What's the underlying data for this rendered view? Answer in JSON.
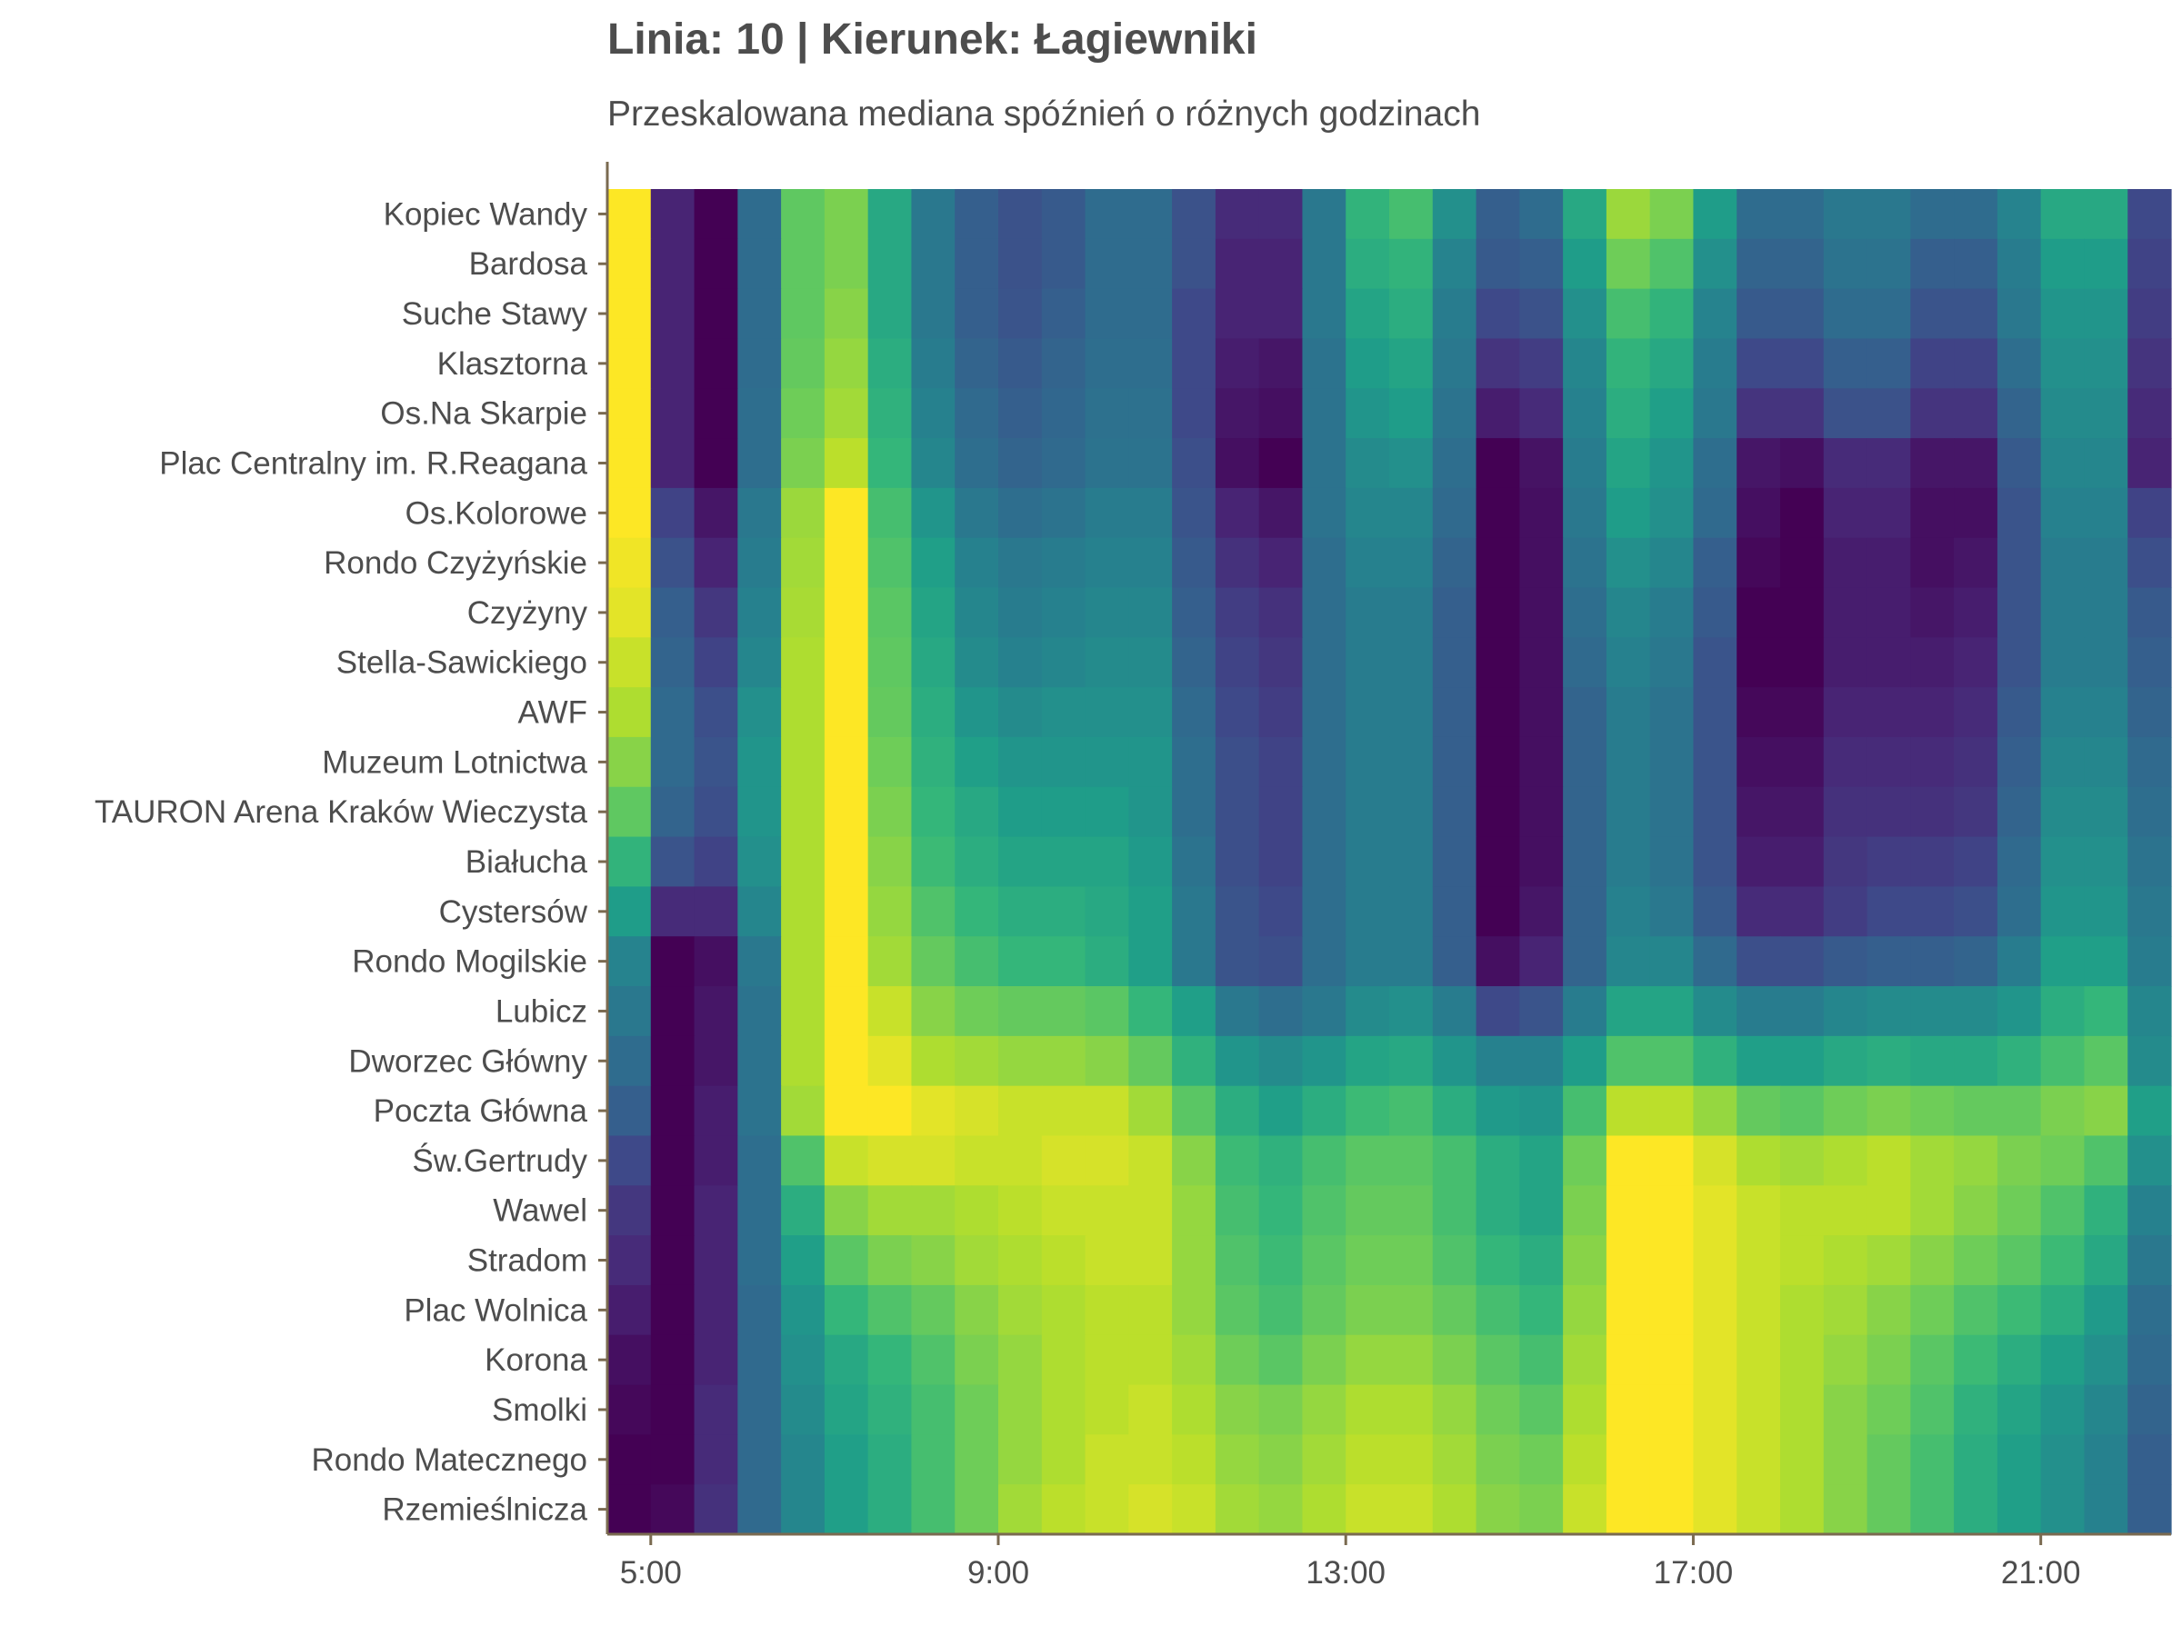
{
  "chart_data": {
    "type": "heatmap",
    "title": "Linia: 10 | Kierunek: Łagiewniki",
    "subtitle": "Przeskalowana mediana spóźnień o różnych godzinach",
    "xlabel": "",
    "ylabel": "",
    "x_tick_labels": [
      "5:00",
      "9:00",
      "13:00",
      "17:00",
      "21:00"
    ],
    "x_tick_hours": [
      5,
      9,
      13,
      17,
      21
    ],
    "x_hours": [
      4.75,
      5.25,
      5.75,
      6.25,
      6.75,
      7.25,
      7.75,
      8.25,
      8.75,
      9.25,
      9.75,
      10.25,
      10.75,
      11.25,
      11.75,
      12.25,
      12.75,
      13.25,
      13.75,
      14.25,
      14.75,
      15.25,
      15.75,
      16.25,
      16.75,
      17.25,
      17.75,
      18.25,
      18.75,
      19.25,
      19.75,
      20.25,
      20.75,
      21.25,
      21.75,
      22.25
    ],
    "x_range": [
      4.5,
      22.5
    ],
    "stops": [
      "Kopiec Wandy",
      "Bardosa",
      "Suche Stawy",
      "Klasztorna",
      "Os.Na Skarpie",
      "Plac Centralny im. R.Reagana",
      "Os.Kolorowe",
      "Rondo Czyżyńskie",
      "Czyżyny",
      "Stella-Sawickiego",
      "AWF",
      "Muzeum Lotnictwa",
      "TAURON Arena Kraków Wieczysta",
      "Białucha",
      "Cystersów",
      "Rondo Mogilskie",
      "Lubicz",
      "Dworzec Główny",
      "Poczta Główna",
      "Św.Gertrudy",
      "Wawel",
      "Stradom",
      "Plac Wolnica",
      "Korona",
      "Smolki",
      "Rondo Matecznego",
      "Rzemieślnicza"
    ],
    "colorscale": "viridis",
    "value_range": [
      0,
      1
    ],
    "values": [
      [
        1.0,
        0.1,
        0.0,
        0.35,
        0.75,
        0.8,
        0.6,
        0.4,
        0.3,
        0.25,
        0.28,
        0.35,
        0.35,
        0.25,
        0.12,
        0.12,
        0.4,
        0.65,
        0.7,
        0.5,
        0.3,
        0.35,
        0.6,
        0.85,
        0.8,
        0.55,
        0.35,
        0.35,
        0.4,
        0.4,
        0.35,
        0.35,
        0.45,
        0.6,
        0.6,
        0.22
      ],
      [
        1.0,
        0.1,
        0.0,
        0.35,
        0.75,
        0.8,
        0.6,
        0.4,
        0.3,
        0.25,
        0.28,
        0.35,
        0.35,
        0.25,
        0.1,
        0.1,
        0.4,
        0.62,
        0.65,
        0.45,
        0.28,
        0.3,
        0.55,
        0.78,
        0.72,
        0.5,
        0.32,
        0.32,
        0.38,
        0.38,
        0.3,
        0.3,
        0.42,
        0.55,
        0.55,
        0.2
      ],
      [
        1.0,
        0.1,
        0.0,
        0.35,
        0.75,
        0.82,
        0.6,
        0.4,
        0.3,
        0.26,
        0.3,
        0.35,
        0.35,
        0.22,
        0.1,
        0.1,
        0.4,
        0.58,
        0.62,
        0.42,
        0.22,
        0.25,
        0.5,
        0.7,
        0.65,
        0.45,
        0.28,
        0.28,
        0.35,
        0.35,
        0.26,
        0.26,
        0.4,
        0.52,
        0.52,
        0.18
      ],
      [
        1.0,
        0.1,
        0.0,
        0.35,
        0.76,
        0.84,
        0.62,
        0.42,
        0.32,
        0.28,
        0.32,
        0.36,
        0.36,
        0.22,
        0.08,
        0.06,
        0.38,
        0.55,
        0.58,
        0.4,
        0.15,
        0.18,
        0.46,
        0.65,
        0.6,
        0.42,
        0.22,
        0.22,
        0.3,
        0.3,
        0.2,
        0.2,
        0.36,
        0.5,
        0.5,
        0.15
      ],
      [
        1.0,
        0.1,
        0.0,
        0.36,
        0.78,
        0.86,
        0.64,
        0.44,
        0.34,
        0.3,
        0.33,
        0.37,
        0.37,
        0.22,
        0.06,
        0.04,
        0.38,
        0.52,
        0.55,
        0.38,
        0.08,
        0.12,
        0.44,
        0.62,
        0.56,
        0.4,
        0.15,
        0.15,
        0.25,
        0.25,
        0.15,
        0.15,
        0.32,
        0.48,
        0.48,
        0.12
      ],
      [
        1.0,
        0.1,
        0.0,
        0.36,
        0.8,
        0.9,
        0.66,
        0.46,
        0.36,
        0.32,
        0.34,
        0.38,
        0.38,
        0.24,
        0.04,
        0.0,
        0.38,
        0.48,
        0.5,
        0.36,
        0.0,
        0.05,
        0.42,
        0.58,
        0.52,
        0.36,
        0.06,
        0.04,
        0.12,
        0.12,
        0.06,
        0.06,
        0.28,
        0.46,
        0.46,
        0.1
      ],
      [
        1.0,
        0.2,
        0.06,
        0.4,
        0.85,
        1.0,
        0.7,
        0.52,
        0.4,
        0.36,
        0.38,
        0.42,
        0.42,
        0.26,
        0.1,
        0.06,
        0.38,
        0.46,
        0.46,
        0.34,
        0.0,
        0.04,
        0.4,
        0.55,
        0.5,
        0.34,
        0.04,
        0.0,
        0.1,
        0.1,
        0.04,
        0.04,
        0.26,
        0.44,
        0.44,
        0.2
      ],
      [
        0.98,
        0.25,
        0.1,
        0.42,
        0.86,
        1.0,
        0.72,
        0.56,
        0.44,
        0.4,
        0.42,
        0.44,
        0.44,
        0.28,
        0.14,
        0.1,
        0.36,
        0.44,
        0.44,
        0.32,
        0.0,
        0.04,
        0.38,
        0.5,
        0.46,
        0.3,
        0.02,
        0.0,
        0.08,
        0.08,
        0.04,
        0.06,
        0.26,
        0.42,
        0.42,
        0.24
      ],
      [
        0.96,
        0.3,
        0.16,
        0.44,
        0.87,
        1.0,
        0.74,
        0.58,
        0.46,
        0.42,
        0.44,
        0.46,
        0.46,
        0.3,
        0.18,
        0.14,
        0.36,
        0.42,
        0.42,
        0.3,
        0.0,
        0.04,
        0.36,
        0.46,
        0.42,
        0.28,
        0.0,
        0.0,
        0.08,
        0.08,
        0.06,
        0.08,
        0.26,
        0.42,
        0.42,
        0.28
      ],
      [
        0.92,
        0.32,
        0.2,
        0.46,
        0.88,
        1.0,
        0.75,
        0.6,
        0.48,
        0.44,
        0.46,
        0.48,
        0.48,
        0.32,
        0.2,
        0.16,
        0.36,
        0.42,
        0.42,
        0.3,
        0.0,
        0.04,
        0.34,
        0.44,
        0.4,
        0.26,
        0.0,
        0.0,
        0.08,
        0.08,
        0.08,
        0.1,
        0.26,
        0.42,
        0.42,
        0.3
      ],
      [
        0.88,
        0.34,
        0.24,
        0.5,
        0.88,
        1.0,
        0.76,
        0.62,
        0.52,
        0.48,
        0.5,
        0.5,
        0.5,
        0.34,
        0.22,
        0.18,
        0.36,
        0.42,
        0.42,
        0.3,
        0.0,
        0.04,
        0.32,
        0.42,
        0.38,
        0.26,
        0.02,
        0.02,
        0.1,
        0.1,
        0.1,
        0.12,
        0.28,
        0.44,
        0.44,
        0.32
      ],
      [
        0.82,
        0.34,
        0.26,
        0.52,
        0.88,
        1.0,
        0.78,
        0.64,
        0.56,
        0.52,
        0.52,
        0.52,
        0.52,
        0.36,
        0.24,
        0.2,
        0.36,
        0.42,
        0.42,
        0.3,
        0.0,
        0.04,
        0.32,
        0.42,
        0.38,
        0.26,
        0.04,
        0.04,
        0.12,
        0.12,
        0.12,
        0.14,
        0.3,
        0.46,
        0.46,
        0.34
      ],
      [
        0.75,
        0.32,
        0.24,
        0.52,
        0.88,
        1.0,
        0.8,
        0.66,
        0.6,
        0.55,
        0.55,
        0.55,
        0.52,
        0.36,
        0.24,
        0.2,
        0.36,
        0.42,
        0.42,
        0.3,
        0.0,
        0.04,
        0.32,
        0.42,
        0.38,
        0.26,
        0.06,
        0.06,
        0.14,
        0.14,
        0.14,
        0.16,
        0.32,
        0.48,
        0.48,
        0.36
      ],
      [
        0.65,
        0.26,
        0.2,
        0.5,
        0.88,
        1.0,
        0.82,
        0.68,
        0.62,
        0.58,
        0.58,
        0.58,
        0.54,
        0.38,
        0.24,
        0.2,
        0.36,
        0.42,
        0.42,
        0.3,
        0.0,
        0.04,
        0.32,
        0.42,
        0.38,
        0.26,
        0.08,
        0.08,
        0.16,
        0.18,
        0.18,
        0.2,
        0.34,
        0.5,
        0.5,
        0.38
      ],
      [
        0.55,
        0.12,
        0.12,
        0.46,
        0.88,
        1.0,
        0.84,
        0.72,
        0.66,
        0.62,
        0.62,
        0.6,
        0.56,
        0.4,
        0.26,
        0.22,
        0.36,
        0.42,
        0.42,
        0.3,
        0.0,
        0.06,
        0.32,
        0.44,
        0.4,
        0.28,
        0.12,
        0.12,
        0.18,
        0.22,
        0.22,
        0.24,
        0.36,
        0.52,
        0.52,
        0.4
      ],
      [
        0.45,
        0.0,
        0.04,
        0.4,
        0.88,
        1.0,
        0.86,
        0.76,
        0.7,
        0.66,
        0.66,
        0.62,
        0.56,
        0.4,
        0.26,
        0.24,
        0.36,
        0.42,
        0.42,
        0.3,
        0.04,
        0.1,
        0.32,
        0.46,
        0.46,
        0.34,
        0.24,
        0.24,
        0.28,
        0.3,
        0.3,
        0.32,
        0.42,
        0.56,
        0.56,
        0.42
      ],
      [
        0.4,
        0.0,
        0.06,
        0.38,
        0.88,
        1.0,
        0.92,
        0.82,
        0.78,
        0.76,
        0.76,
        0.74,
        0.66,
        0.56,
        0.4,
        0.36,
        0.4,
        0.48,
        0.5,
        0.42,
        0.22,
        0.26,
        0.42,
        0.58,
        0.58,
        0.48,
        0.42,
        0.42,
        0.46,
        0.48,
        0.48,
        0.48,
        0.52,
        0.62,
        0.66,
        0.46
      ],
      [
        0.35,
        0.0,
        0.06,
        0.38,
        0.88,
        1.0,
        0.96,
        0.88,
        0.86,
        0.84,
        0.84,
        0.82,
        0.76,
        0.64,
        0.52,
        0.48,
        0.52,
        0.58,
        0.6,
        0.52,
        0.44,
        0.44,
        0.55,
        0.72,
        0.72,
        0.64,
        0.56,
        0.56,
        0.6,
        0.62,
        0.6,
        0.6,
        0.64,
        0.7,
        0.74,
        0.48
      ],
      [
        0.3,
        0.0,
        0.08,
        0.38,
        0.86,
        1.0,
        1.0,
        0.96,
        0.94,
        0.92,
        0.92,
        0.92,
        0.86,
        0.74,
        0.62,
        0.56,
        0.62,
        0.68,
        0.7,
        0.62,
        0.54,
        0.52,
        0.7,
        0.9,
        0.9,
        0.84,
        0.76,
        0.74,
        0.78,
        0.8,
        0.78,
        0.76,
        0.76,
        0.8,
        0.82,
        0.56
      ],
      [
        0.22,
        0.0,
        0.08,
        0.36,
        0.72,
        0.92,
        0.94,
        0.94,
        0.92,
        0.92,
        0.94,
        0.94,
        0.92,
        0.82,
        0.68,
        0.64,
        0.7,
        0.74,
        0.74,
        0.7,
        0.62,
        0.58,
        0.78,
        1.0,
        1.0,
        0.94,
        0.88,
        0.86,
        0.88,
        0.9,
        0.86,
        0.84,
        0.8,
        0.78,
        0.72,
        0.5
      ],
      [
        0.16,
        0.0,
        0.1,
        0.36,
        0.62,
        0.82,
        0.86,
        0.86,
        0.88,
        0.9,
        0.92,
        0.92,
        0.92,
        0.84,
        0.7,
        0.66,
        0.72,
        0.76,
        0.76,
        0.7,
        0.62,
        0.58,
        0.8,
        1.0,
        1.0,
        0.96,
        0.92,
        0.9,
        0.9,
        0.9,
        0.86,
        0.82,
        0.78,
        0.72,
        0.64,
        0.44
      ],
      [
        0.12,
        0.0,
        0.1,
        0.36,
        0.56,
        0.74,
        0.8,
        0.82,
        0.86,
        0.88,
        0.9,
        0.92,
        0.92,
        0.84,
        0.72,
        0.68,
        0.74,
        0.78,
        0.78,
        0.72,
        0.66,
        0.62,
        0.82,
        1.0,
        1.0,
        0.96,
        0.92,
        0.9,
        0.88,
        0.86,
        0.82,
        0.78,
        0.74,
        0.68,
        0.6,
        0.4
      ],
      [
        0.08,
        0.0,
        0.1,
        0.34,
        0.52,
        0.66,
        0.72,
        0.76,
        0.82,
        0.86,
        0.88,
        0.9,
        0.9,
        0.84,
        0.74,
        0.7,
        0.76,
        0.8,
        0.8,
        0.76,
        0.7,
        0.66,
        0.84,
        1.0,
        1.0,
        0.96,
        0.92,
        0.88,
        0.86,
        0.82,
        0.78,
        0.72,
        0.68,
        0.62,
        0.54,
        0.36
      ],
      [
        0.04,
        0.0,
        0.1,
        0.34,
        0.5,
        0.6,
        0.66,
        0.72,
        0.8,
        0.84,
        0.88,
        0.9,
        0.9,
        0.86,
        0.78,
        0.74,
        0.8,
        0.84,
        0.84,
        0.8,
        0.74,
        0.7,
        0.86,
        1.0,
        1.0,
        0.96,
        0.92,
        0.88,
        0.84,
        0.8,
        0.74,
        0.68,
        0.62,
        0.56,
        0.5,
        0.34
      ],
      [
        0.02,
        0.0,
        0.12,
        0.34,
        0.48,
        0.58,
        0.64,
        0.7,
        0.78,
        0.84,
        0.88,
        0.9,
        0.92,
        0.88,
        0.82,
        0.8,
        0.84,
        0.88,
        0.88,
        0.84,
        0.78,
        0.74,
        0.88,
        1.0,
        1.0,
        0.96,
        0.92,
        0.88,
        0.82,
        0.78,
        0.72,
        0.64,
        0.58,
        0.52,
        0.46,
        0.32
      ],
      [
        0.0,
        0.0,
        0.12,
        0.34,
        0.46,
        0.56,
        0.62,
        0.7,
        0.78,
        0.84,
        0.88,
        0.92,
        0.92,
        0.9,
        0.84,
        0.82,
        0.86,
        0.9,
        0.9,
        0.86,
        0.8,
        0.78,
        0.9,
        1.0,
        1.0,
        0.96,
        0.92,
        0.88,
        0.82,
        0.76,
        0.7,
        0.62,
        0.56,
        0.5,
        0.44,
        0.3
      ],
      [
        0.0,
        0.02,
        0.14,
        0.34,
        0.46,
        0.56,
        0.62,
        0.7,
        0.78,
        0.86,
        0.9,
        0.92,
        0.94,
        0.92,
        0.86,
        0.84,
        0.88,
        0.92,
        0.92,
        0.88,
        0.82,
        0.8,
        0.92,
        1.0,
        1.0,
        0.96,
        0.92,
        0.88,
        0.82,
        0.76,
        0.7,
        0.62,
        0.56,
        0.5,
        0.44,
        0.3
      ]
    ]
  }
}
